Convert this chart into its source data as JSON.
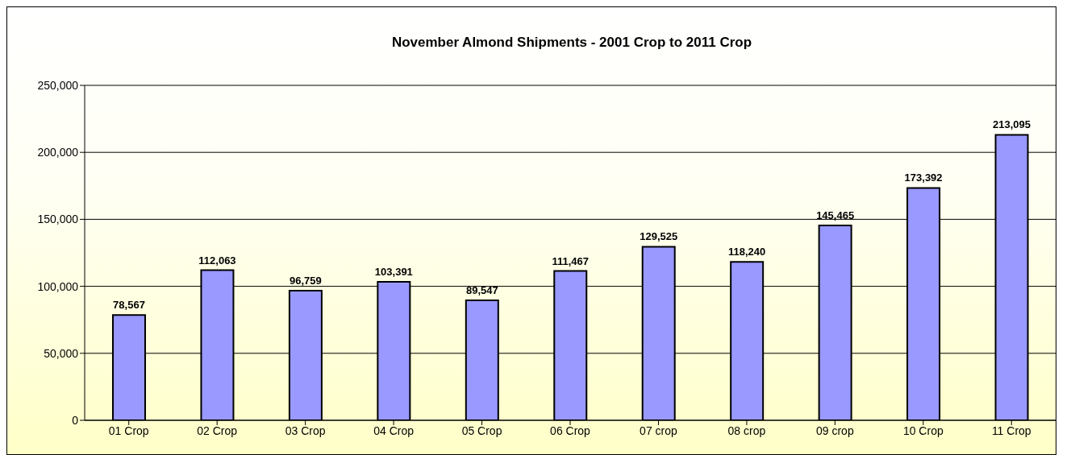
{
  "chart_data": {
    "type": "bar",
    "title": "November Almond Shipments - 2001 Crop to 2011 Crop",
    "categories": [
      "01 Crop",
      "02 Crop",
      "03 Crop",
      "04 Crop",
      "05 Crop",
      "06 Crop",
      "07 crop",
      "08 crop",
      "09 crop",
      "10 Crop",
      "11 Crop"
    ],
    "values": [
      78567,
      112063,
      96759,
      103391,
      89547,
      111467,
      129525,
      118240,
      145465,
      173392,
      213095
    ],
    "color": "#9999ff",
    "ylim": [
      0,
      250000
    ],
    "yticks": [
      {
        "value": 0,
        "label": "0"
      },
      {
        "value": 50000,
        "label": "50,000"
      },
      {
        "value": 100000,
        "label": "100,000"
      },
      {
        "value": 150000,
        "label": "150,000"
      },
      {
        "value": 200000,
        "label": "200,000"
      },
      {
        "value": 250000,
        "label": "250,000"
      }
    ],
    "value_labels": [
      "78,567",
      "112,063",
      "96,759",
      "103,391",
      "89,547",
      "111,467",
      "129,525",
      "118,240",
      "145,465",
      "173,392",
      "213,095"
    ],
    "grid": "y",
    "legend": false
  }
}
